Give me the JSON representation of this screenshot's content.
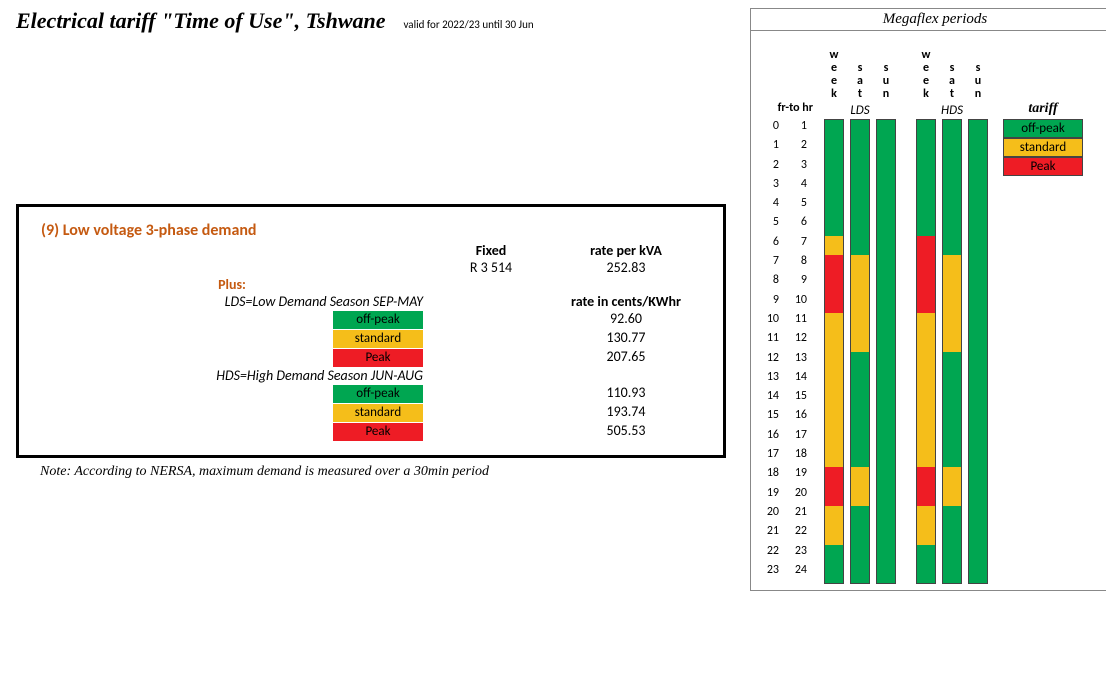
{
  "title": "Electrical tariff \"Time of Use\", Tshwane",
  "subtitle": "valid for 2022/23 until 30 Jun",
  "box": {
    "heading": "(9) Low voltage 3-phase demand",
    "hdr_fixed": "Fixed",
    "hdr_rate_kva": "rate per kVA",
    "fixed_value": "R 3 514",
    "rate_kva_value": "252.83",
    "plus": "Plus:",
    "lds_label": "LDS=Low Demand Season SEP-MAY",
    "hds_label": "HDS=High Demand Season JUN-AUG",
    "rate_kwh_hdr": "rate in cents/KWhr",
    "lds_rates": {
      "offpeak": "92.60",
      "standard": "130.77",
      "peak": "207.65"
    },
    "hds_rates": {
      "offpeak": "110.93",
      "standard": "193.74",
      "peak": "505.53"
    }
  },
  "tariff_labels": {
    "offpeak": "off-peak",
    "standard": "standard",
    "peak": "Peak"
  },
  "colors": {
    "offpeak": "#00a651",
    "standard": "#f5be1a",
    "peak": "#ee1c25",
    "heading": "#c55a11",
    "border": "#000000"
  },
  "note": "Note: According to NERSA, maximum demand is measured over a 30min period",
  "mega": {
    "title": "Megaflex periods",
    "frto": "fr-to hr",
    "lds": "LDS",
    "hds": "HDS",
    "legend_title": "tariff",
    "day_labels": {
      "week": "week",
      "sat": "sat",
      "sun": "sun"
    },
    "hours_from": [
      0,
      1,
      2,
      3,
      4,
      5,
      6,
      7,
      8,
      9,
      10,
      11,
      12,
      13,
      14,
      15,
      16,
      17,
      18,
      19,
      20,
      21,
      22,
      23
    ],
    "hours_to": [
      1,
      2,
      3,
      4,
      5,
      6,
      7,
      8,
      9,
      10,
      11,
      12,
      13,
      14,
      15,
      16,
      17,
      18,
      19,
      20,
      21,
      22,
      23,
      24
    ],
    "cell_h": 19.3,
    "columns": {
      "lds_week": [
        "o",
        "o",
        "o",
        "o",
        "o",
        "o",
        "s",
        "p",
        "p",
        "p",
        "s",
        "s",
        "s",
        "s",
        "s",
        "s",
        "s",
        "s",
        "p",
        "p",
        "s",
        "s",
        "o",
        "o"
      ],
      "lds_sat": [
        "o",
        "o",
        "o",
        "o",
        "o",
        "o",
        "o",
        "s",
        "s",
        "s",
        "s",
        "s",
        "o",
        "o",
        "o",
        "o",
        "o",
        "o",
        "s",
        "s",
        "o",
        "o",
        "o",
        "o"
      ],
      "lds_sun": [
        "o",
        "o",
        "o",
        "o",
        "o",
        "o",
        "o",
        "o",
        "o",
        "o",
        "o",
        "o",
        "o",
        "o",
        "o",
        "o",
        "o",
        "o",
        "o",
        "o",
        "o",
        "o",
        "o",
        "o"
      ],
      "hds_week": [
        "o",
        "o",
        "o",
        "o",
        "o",
        "o",
        "p",
        "p",
        "p",
        "p",
        "s",
        "s",
        "s",
        "s",
        "s",
        "s",
        "s",
        "s",
        "p",
        "p",
        "s",
        "s",
        "o",
        "o"
      ],
      "hds_sat": [
        "o",
        "o",
        "o",
        "o",
        "o",
        "o",
        "o",
        "s",
        "s",
        "s",
        "s",
        "s",
        "o",
        "o",
        "o",
        "o",
        "o",
        "o",
        "s",
        "s",
        "o",
        "o",
        "o",
        "o"
      ],
      "hds_sun": [
        "o",
        "o",
        "o",
        "o",
        "o",
        "o",
        "o",
        "o",
        "o",
        "o",
        "o",
        "o",
        "o",
        "o",
        "o",
        "o",
        "o",
        "o",
        "o",
        "o",
        "o",
        "o",
        "o",
        "o"
      ]
    }
  }
}
